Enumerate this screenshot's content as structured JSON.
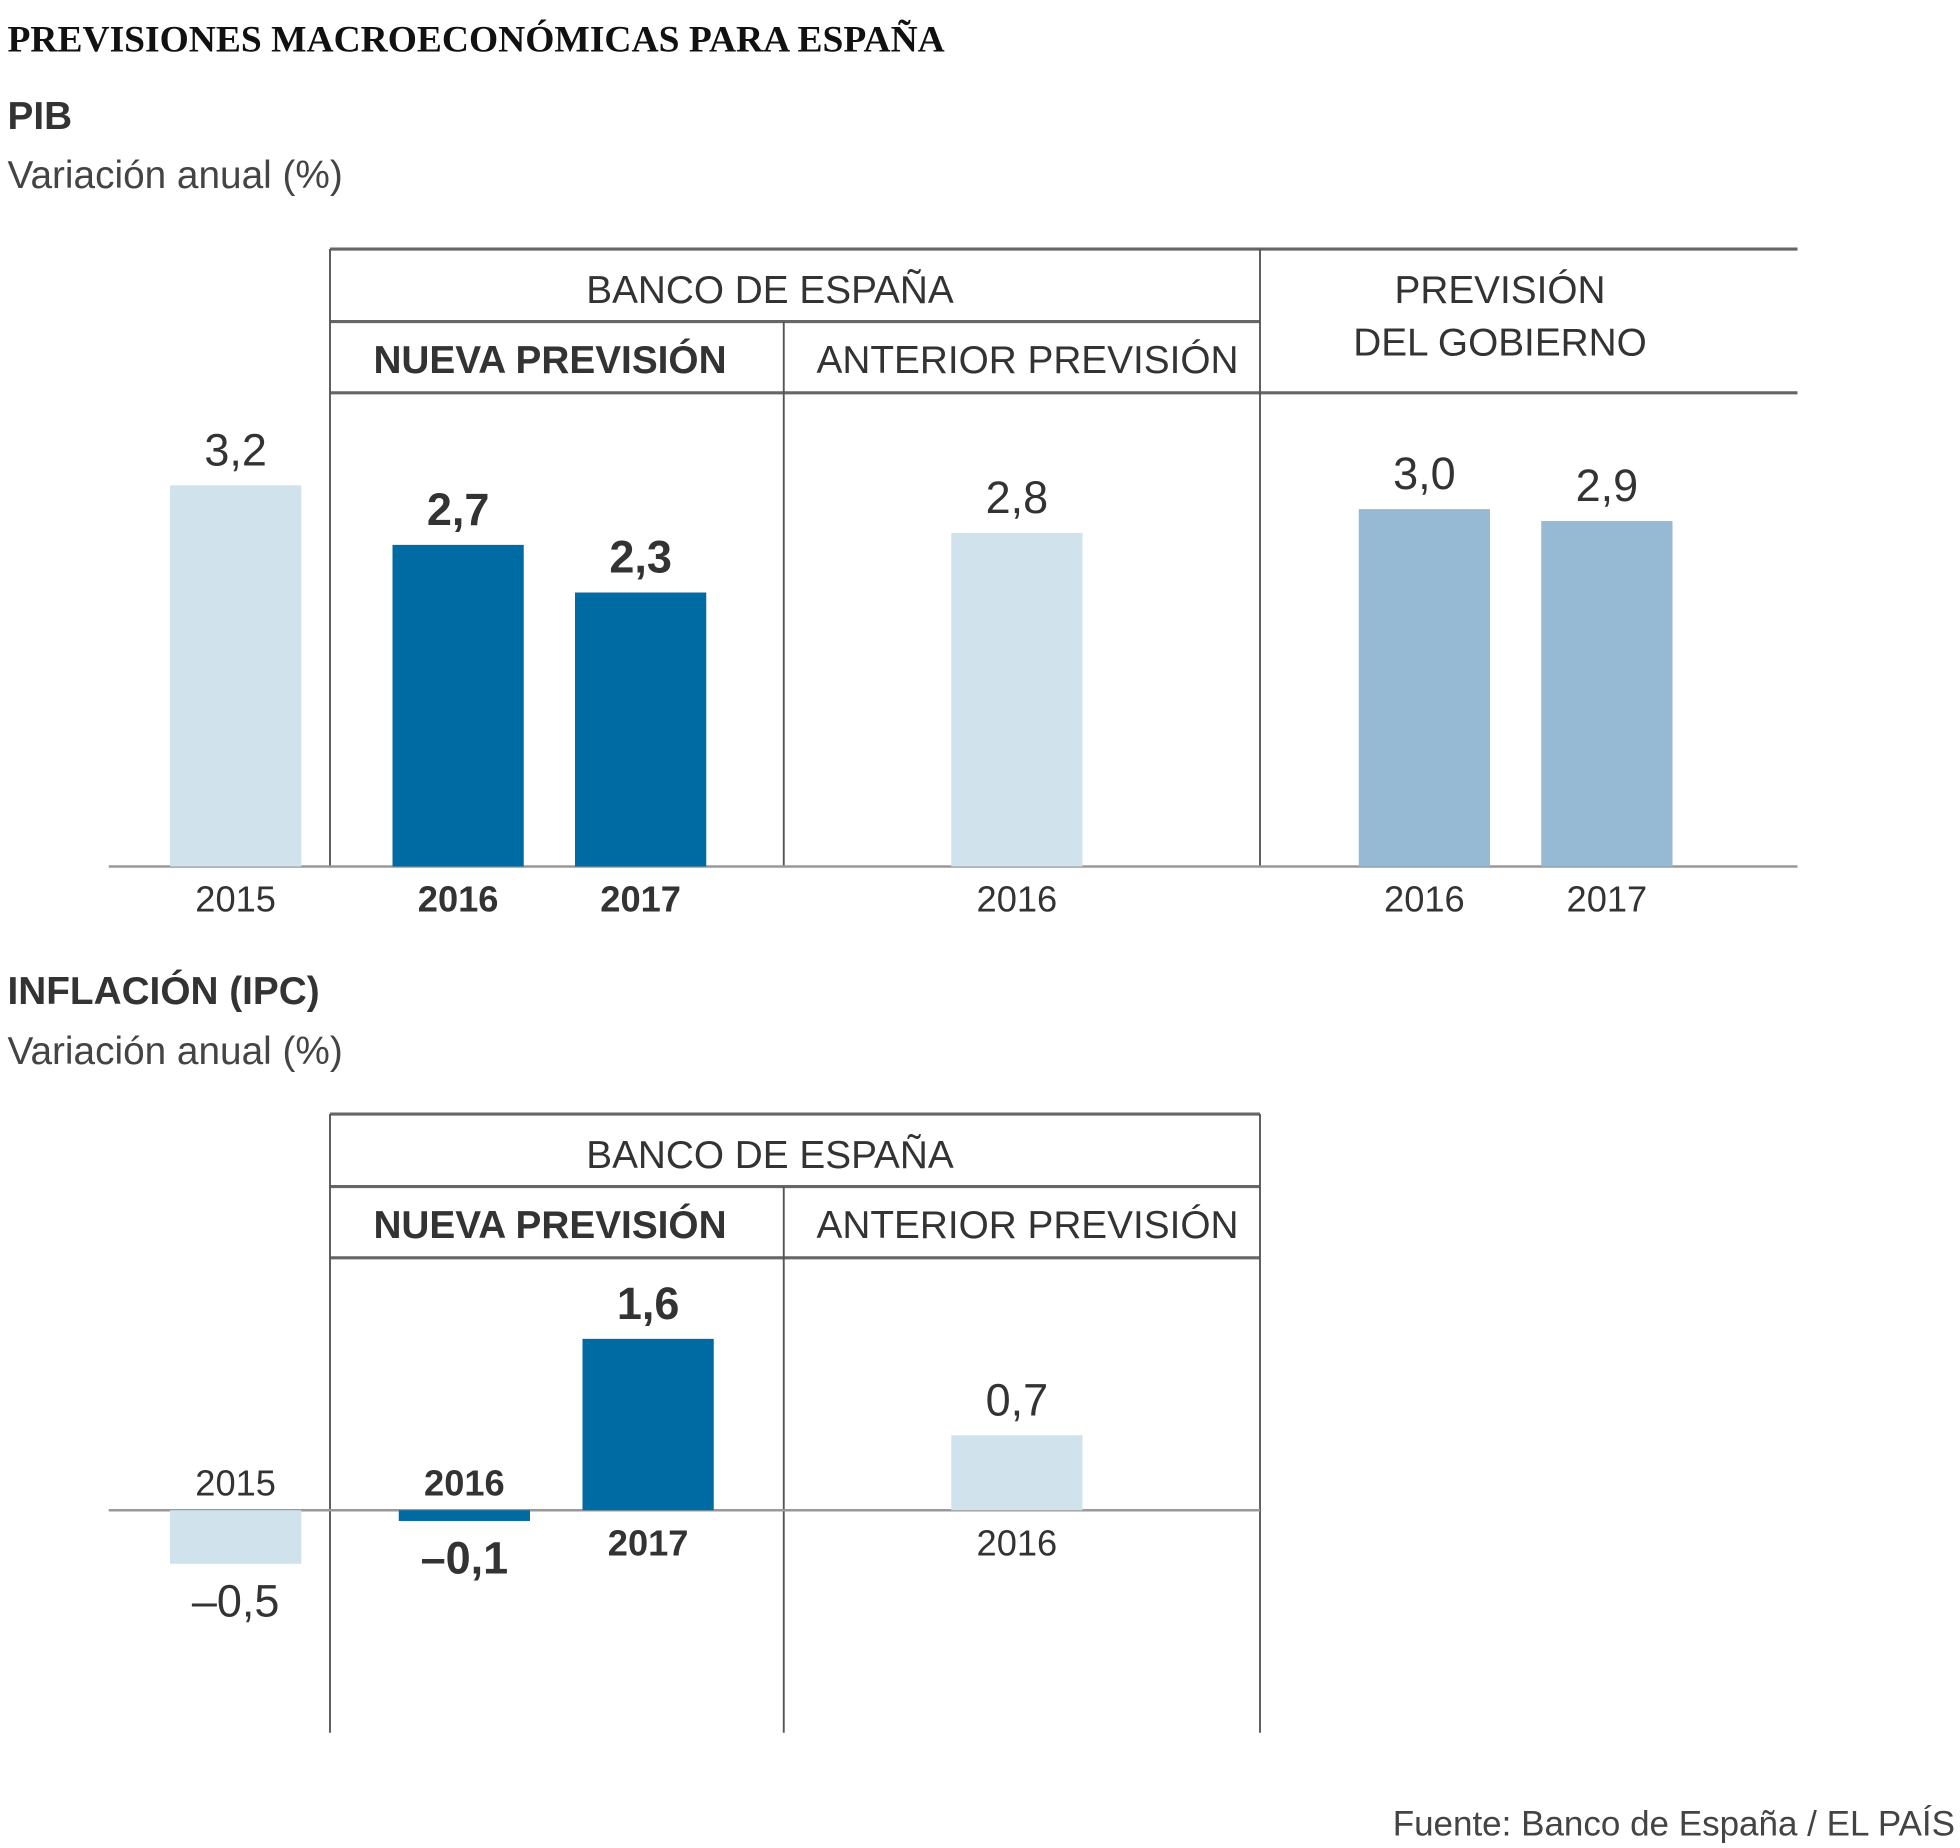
{
  "title": "PREVISIONES MACROECONÓMICAS PARA ESPAÑA",
  "source": "Fuente: Banco de España / EL PAÍS",
  "colors": {
    "past": "#d0e3ec",
    "new": "#006ba3",
    "prior": "#d0e3ec",
    "government": "#96b9d4"
  },
  "headers": {
    "banco": "BANCO DE ESPAÑA",
    "nueva": "NUEVA PREVISIÓN",
    "anterior": "ANTERIOR PREVISIÓN",
    "gobierno_1": "PREVISIÓN",
    "gobierno_2": "DEL GOBIERNO"
  },
  "chart_data": [
    {
      "type": "bar",
      "title": "PIB",
      "ylabel": "Variación anual (%)",
      "bars": [
        {
          "group": "Histórico",
          "year": "2015",
          "value": 3.2,
          "label": "3,2",
          "kind": "past"
        },
        {
          "group": "Nueva previsión",
          "year": "2016",
          "value": 2.7,
          "label": "2,7",
          "kind": "new"
        },
        {
          "group": "Nueva previsión",
          "year": "2017",
          "value": 2.3,
          "label": "2,3",
          "kind": "new"
        },
        {
          "group": "Anterior previsión",
          "year": "2016",
          "value": 2.8,
          "label": "2,8",
          "kind": "prior"
        },
        {
          "group": "Previsión del Gobierno",
          "year": "2016",
          "value": 3.0,
          "label": "3,0",
          "kind": "government"
        },
        {
          "group": "Previsión del Gobierno",
          "year": "2017",
          "value": 2.9,
          "label": "2,9",
          "kind": "government"
        }
      ]
    },
    {
      "type": "bar",
      "title": "INFLACIÓN (IPC)",
      "ylabel": "Variación anual (%)",
      "bars": [
        {
          "group": "Histórico",
          "year": "2015",
          "value": -0.5,
          "label": "–0,5",
          "kind": "past"
        },
        {
          "group": "Nueva previsión",
          "year": "2016",
          "value": -0.1,
          "label": "–0,1",
          "kind": "new"
        },
        {
          "group": "Nueva previsión",
          "year": "2017",
          "value": 1.6,
          "label": "1,6",
          "kind": "new"
        },
        {
          "group": "Anterior previsión",
          "year": "2016",
          "value": 0.7,
          "label": "0,7",
          "kind": "prior"
        }
      ]
    }
  ]
}
